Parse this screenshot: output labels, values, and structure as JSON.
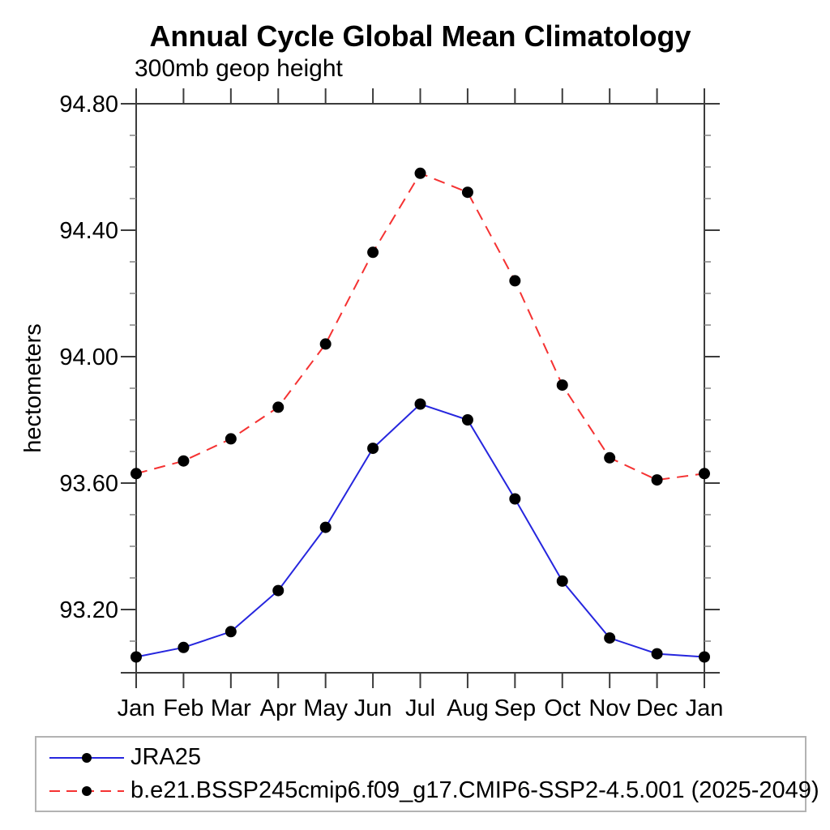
{
  "chart_data": {
    "type": "line",
    "title": "Annual Cycle Global Mean Climatology",
    "subtitle": "300mb geop height",
    "ylabel": "hectometers",
    "categories": [
      "Jan",
      "Feb",
      "Mar",
      "Apr",
      "May",
      "Jun",
      "Jul",
      "Aug",
      "Sep",
      "Oct",
      "Nov",
      "Dec",
      "Jan"
    ],
    "ylim": [
      93.0,
      94.8
    ],
    "yticks_major": [
      93.2,
      93.6,
      94.0,
      94.4,
      94.8
    ],
    "ytick_labels": [
      "93.20",
      "93.60",
      "94.00",
      "94.40",
      "94.80"
    ],
    "ytick_minor_step": 0.1,
    "grid": false,
    "legend_position": "bottom-left-box",
    "series": [
      {
        "name": "JRA25",
        "style": "solid",
        "marker": "filled-circle",
        "values": [
          93.05,
          93.08,
          93.13,
          93.26,
          93.46,
          93.71,
          93.85,
          93.8,
          93.55,
          93.29,
          93.11,
          93.06,
          93.05
        ]
      },
      {
        "name": "b.e21.BSSP245cmip6.f09_g17.CMIP6-SSP2-4.5.001 (2025-2049)",
        "style": "dashed",
        "marker": "filled-circle",
        "values": [
          93.63,
          93.67,
          93.74,
          93.84,
          94.04,
          94.33,
          94.58,
          94.52,
          94.24,
          93.91,
          93.68,
          93.61,
          93.63
        ]
      }
    ]
  },
  "colors": {
    "series_jra25": "#2626de",
    "series_model": "#f53232",
    "marker": "#000000",
    "axis": "#3c3c3c",
    "minor_tick": "#8a8a8a",
    "text": "#000000",
    "legend_border": "#b3b3b3"
  }
}
